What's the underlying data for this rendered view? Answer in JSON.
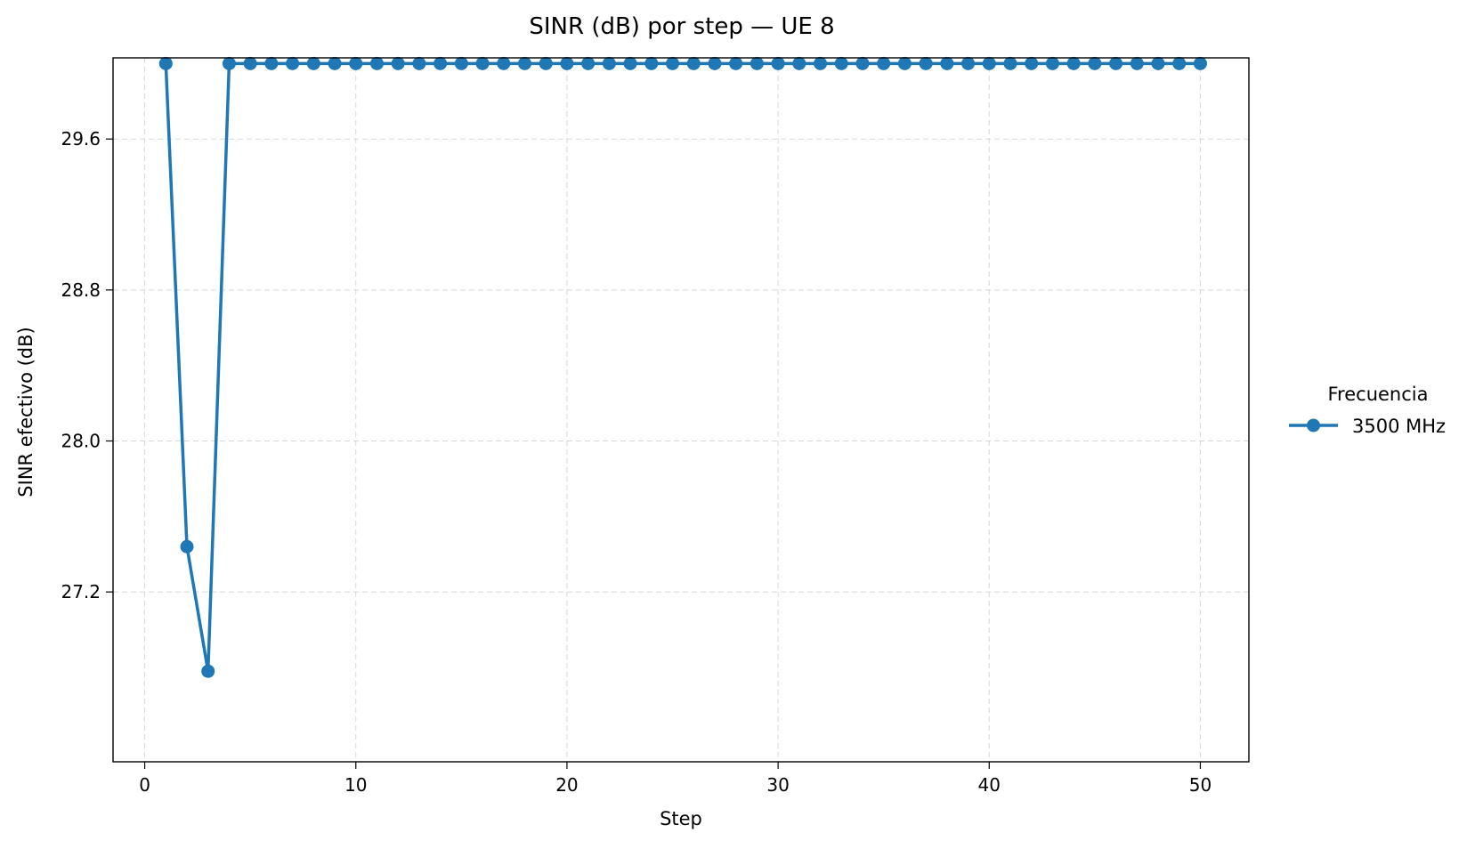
{
  "chart_data": {
    "type": "line",
    "title": "SINR (dB) por step — UE 8",
    "xlabel": "Step",
    "ylabel": "SINR efectivo (dB)",
    "xlim": [
      -1.5,
      52.3
    ],
    "ylim": [
      26.3,
      30.03
    ],
    "xticks": [
      0,
      10,
      20,
      30,
      40,
      50
    ],
    "yticks": [
      27.2,
      28.0,
      28.8,
      29.6
    ],
    "ytick_labels": [
      "27.2",
      "28.0",
      "28.8",
      "29.6"
    ],
    "grid": true,
    "legend": {
      "title": "Frecuencia",
      "placement": "right-outside"
    },
    "series": [
      {
        "name": "3500 MHz",
        "color": "#1f77b4",
        "marker": "circle",
        "x": [
          1,
          2,
          3,
          4,
          5,
          6,
          7,
          8,
          9,
          10,
          11,
          12,
          13,
          14,
          15,
          16,
          17,
          18,
          19,
          20,
          21,
          22,
          23,
          24,
          25,
          26,
          27,
          28,
          29,
          30,
          31,
          32,
          33,
          34,
          35,
          36,
          37,
          38,
          39,
          40,
          41,
          42,
          43,
          44,
          45,
          46,
          47,
          48,
          49,
          50
        ],
        "y": [
          30.0,
          27.44,
          26.78,
          30.0,
          30.0,
          30.0,
          30.0,
          30.0,
          30.0,
          30.0,
          30.0,
          30.0,
          30.0,
          30.0,
          30.0,
          30.0,
          30.0,
          30.0,
          30.0,
          30.0,
          30.0,
          30.0,
          30.0,
          30.0,
          30.0,
          30.0,
          30.0,
          30.0,
          30.0,
          30.0,
          30.0,
          30.0,
          30.0,
          30.0,
          30.0,
          30.0,
          30.0,
          30.0,
          30.0,
          30.0,
          30.0,
          30.0,
          30.0,
          30.0,
          30.0,
          30.0,
          30.0,
          30.0,
          30.0,
          30.0
        ]
      }
    ]
  }
}
